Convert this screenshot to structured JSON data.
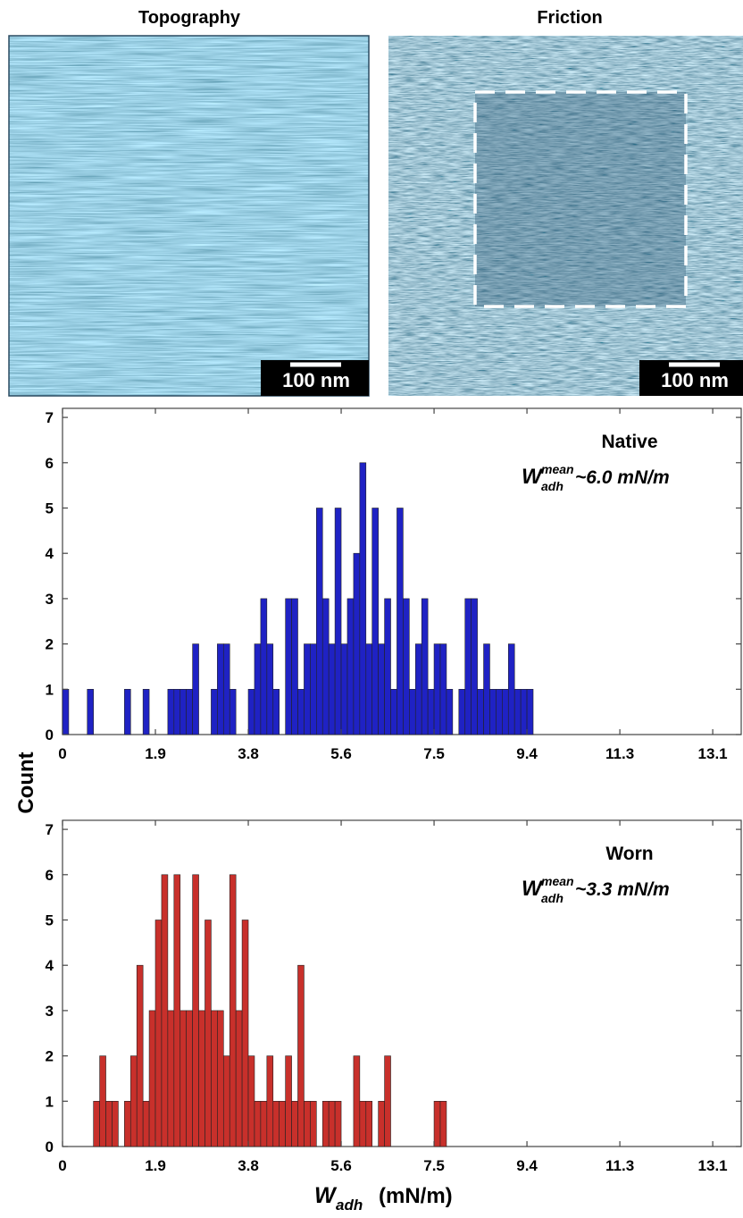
{
  "images": [
    {
      "title": "Topography",
      "scale_bar": "100 nm"
    },
    {
      "title": "Friction",
      "scale_bar": "100 nm"
    }
  ],
  "chart_data": [
    {
      "type": "histogram",
      "annotation": "Native",
      "mean_label": {
        "symbol": "W",
        "subscript": "adh",
        "superscript": "mean",
        "value": "~6.0 mN/m"
      },
      "y_label": "Count",
      "color": "#1f22c4",
      "bins": [
        0,
        0.125,
        0.25,
        0.375,
        0.5,
        0.625,
        0.75,
        0.875,
        1,
        1.125,
        1.25,
        1.375,
        1.5,
        1.625,
        1.75,
        1.875,
        2,
        2.125,
        2.25,
        2.375,
        2.5,
        2.625,
        2.75,
        2.875,
        3,
        3.125,
        3.25,
        3.375,
        3.5,
        3.625,
        3.75,
        3.875,
        4,
        4.125,
        4.25,
        4.375,
        4.5,
        4.625,
        4.75,
        4.875,
        5,
        5.125,
        5.25,
        5.375,
        5.5,
        5.625,
        5.75,
        5.875,
        6,
        6.125,
        6.25,
        6.375,
        6.5,
        6.625,
        6.75,
        6.875,
        7,
        7.125,
        7.25,
        7.375,
        7.5,
        7.625,
        7.75,
        7.875,
        8,
        8.125,
        8.25,
        8.375,
        8.5,
        8.625,
        8.75,
        8.875,
        9,
        9.125,
        9.25,
        9.375,
        9.5
      ],
      "counts": [
        1,
        0,
        0,
        0,
        1,
        0,
        0,
        0,
        0,
        0,
        1,
        0,
        0,
        1,
        0,
        0,
        0,
        1,
        1,
        1,
        1,
        2,
        0,
        0,
        1,
        2,
        2,
        1,
        0,
        0,
        1,
        2,
        3,
        2,
        1,
        0,
        3,
        3,
        1,
        2,
        2,
        5,
        3,
        2,
        5,
        2,
        3,
        4,
        6,
        2,
        5,
        2,
        3,
        1,
        5,
        3,
        1,
        2,
        3,
        1,
        2,
        2,
        1,
        0,
        1,
        3,
        3,
        1,
        2,
        1,
        1,
        1,
        2,
        1,
        1,
        1
      ],
      "xlim": [
        0,
        13.7
      ],
      "xticks": [
        0,
        {
          "value": 1.875,
          "label": "1.9"
        },
        {
          "value": 3.75,
          "label": "3.8"
        },
        {
          "value": 5.625,
          "label": "5.6"
        },
        7.5,
        {
          "value": 9.375,
          "label": "9.4"
        },
        {
          "value": 11.25,
          "label": "11.3"
        },
        {
          "value": 13.125,
          "label": "13.1"
        }
      ],
      "ylim": [
        0,
        7.2
      ],
      "yticks": [
        0,
        1,
        2,
        3,
        4,
        5,
        6,
        7
      ]
    },
    {
      "type": "histogram",
      "annotation": "Worn",
      "mean_label": {
        "symbol": "W",
        "subscript": "adh",
        "superscript": "mean",
        "value": "~3.3 mN/m"
      },
      "x_label": {
        "symbol": "W",
        "subscript": "adh",
        "units": "(mN/m)"
      },
      "color": "#c8302b",
      "bins": [
        0,
        0.125,
        0.25,
        0.375,
        0.5,
        0.625,
        0.75,
        0.875,
        1,
        1.125,
        1.25,
        1.375,
        1.5,
        1.625,
        1.75,
        1.875,
        2,
        2.125,
        2.25,
        2.375,
        2.5,
        2.625,
        2.75,
        2.875,
        3,
        3.125,
        3.25,
        3.375,
        3.5,
        3.625,
        3.75,
        3.875,
        4,
        4.125,
        4.25,
        4.375,
        4.5,
        4.625,
        4.75,
        4.875,
        5,
        5.125,
        5.25,
        5.375,
        5.5,
        5.625,
        5.75,
        5.875,
        6,
        6.125,
        6.25,
        6.375,
        6.5,
        6.625,
        6.75,
        6.875,
        7,
        7.125,
        7.25,
        7.375,
        7.5,
        7.625,
        7.75
      ],
      "counts": [
        0,
        0,
        0,
        0,
        0,
        1,
        2,
        1,
        1,
        0,
        1,
        2,
        4,
        1,
        3,
        5,
        6,
        3,
        6,
        3,
        3,
        6,
        3,
        5,
        3,
        3,
        2,
        6,
        3,
        5,
        2,
        1,
        1,
        2,
        1,
        1,
        2,
        1,
        4,
        1,
        1,
        0,
        1,
        1,
        1,
        0,
        0,
        2,
        1,
        1,
        0,
        1,
        2,
        0,
        0,
        0,
        0,
        0,
        0,
        0,
        1,
        1
      ],
      "xlim": [
        0,
        13.7
      ],
      "xticks": [
        0,
        {
          "value": 1.875,
          "label": "1.9"
        },
        {
          "value": 3.75,
          "label": "3.8"
        },
        {
          "value": 5.625,
          "label": "5.6"
        },
        7.5,
        {
          "value": 9.375,
          "label": "9.4"
        },
        {
          "value": 11.25,
          "label": "11.3"
        },
        {
          "value": 13.125,
          "label": "13.1"
        }
      ],
      "ylim": [
        0,
        7.2
      ],
      "yticks": [
        0,
        1,
        2,
        3,
        4,
        5,
        6,
        7
      ]
    }
  ]
}
